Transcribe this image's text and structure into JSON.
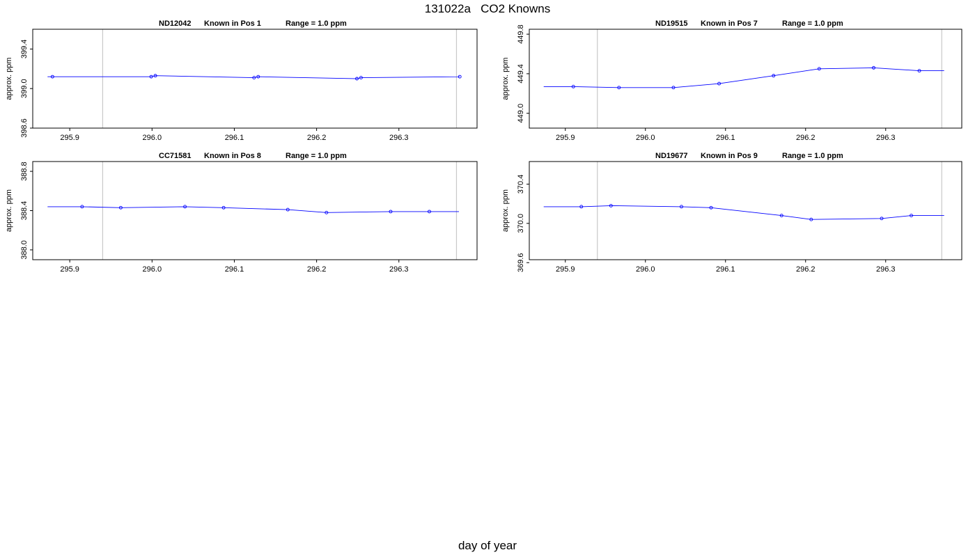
{
  "page": {
    "title": "131022a   CO2 Knowns",
    "xlabel": "day of year"
  },
  "colors": {
    "series": "#0000ff",
    "frame": "#000000",
    "vline": "#c8c8c8"
  },
  "chart_data": [
    {
      "type": "line",
      "id": "ND12042",
      "title_parts": [
        "ND12042",
        "Known in Pos 1",
        "Range = 1.0 ppm"
      ],
      "ylabel": "approx. ppm",
      "xlim": [
        295.855,
        296.395
      ],
      "ylim": [
        398.6,
        399.6
      ],
      "xticks": [
        295.9,
        296.0,
        296.1,
        296.2,
        296.3
      ],
      "xtick_labels": [
        "295.9",
        "296.0",
        "296.1",
        "296.2",
        "296.3"
      ],
      "yticks": [
        398.6,
        399.0,
        399.4
      ],
      "ytick_labels": [
        "398.6",
        "399.0",
        "399.4"
      ],
      "vlines": [
        295.94,
        296.37
      ],
      "line_start": [
        295.873,
        399.12
      ],
      "line_end": [
        296.373,
        399.12
      ],
      "x": [
        295.879,
        295.999,
        296.004,
        296.124,
        296.129,
        296.249,
        296.254,
        296.374
      ],
      "y": [
        399.12,
        399.12,
        399.13,
        399.11,
        399.12,
        399.1,
        399.11,
        399.12
      ]
    },
    {
      "type": "line",
      "id": "ND19515",
      "title_parts": [
        "ND19515",
        "Known in Pos 7",
        "Range = 1.0 ppm"
      ],
      "ylabel": "approx. ppm",
      "xlim": [
        295.855,
        296.395
      ],
      "ylim": [
        448.85,
        449.85
      ],
      "xticks": [
        295.9,
        296.0,
        296.1,
        296.2,
        296.3
      ],
      "xtick_labels": [
        "295.9",
        "296.0",
        "296.1",
        "296.2",
        "296.3"
      ],
      "yticks": [
        449.0,
        449.4,
        449.8
      ],
      "ytick_labels": [
        "449.0",
        "449.4",
        "449.8"
      ],
      "vlines": [
        295.94,
        296.37
      ],
      "line_start": [
        295.873,
        449.27
      ],
      "line_end": [
        296.373,
        449.43
      ],
      "x": [
        295.91,
        295.967,
        296.035,
        296.092,
        296.16,
        296.217,
        296.285,
        296.342
      ],
      "y": [
        449.27,
        449.26,
        449.26,
        449.3,
        449.38,
        449.45,
        449.46,
        449.43
      ]
    },
    {
      "type": "line",
      "id": "CC71581",
      "title_parts": [
        "CC71581",
        "Known in Pos 8",
        "Range = 1.0 ppm"
      ],
      "ylabel": "approx. ppm",
      "xlim": [
        295.855,
        296.395
      ],
      "ylim": [
        387.9,
        388.9
      ],
      "xticks": [
        295.9,
        296.0,
        296.1,
        296.2,
        296.3
      ],
      "xtick_labels": [
        "295.9",
        "296.0",
        "296.1",
        "296.2",
        "296.3"
      ],
      "yticks": [
        388.0,
        388.4,
        388.8
      ],
      "ytick_labels": [
        "388.0",
        "388.4",
        "388.8"
      ],
      "vlines": [
        295.94,
        296.37
      ],
      "line_start": [
        295.873,
        388.44
      ],
      "line_end": [
        296.373,
        388.39
      ],
      "x": [
        295.915,
        295.962,
        296.04,
        296.087,
        296.165,
        296.212,
        296.29,
        296.337
      ],
      "y": [
        388.44,
        388.43,
        388.44,
        388.43,
        388.41,
        388.38,
        388.39,
        388.39
      ]
    },
    {
      "type": "line",
      "id": "ND19677",
      "title_parts": [
        "ND19677",
        "Known in Pos 9",
        "Range = 1.0 ppm"
      ],
      "ylabel": "approx. ppm",
      "xlim": [
        295.855,
        296.395
      ],
      "ylim": [
        369.63,
        370.63
      ],
      "xticks": [
        295.9,
        296.0,
        296.1,
        296.2,
        296.3
      ],
      "xtick_labels": [
        "295.9",
        "296.0",
        "296.1",
        "296.2",
        "296.3"
      ],
      "yticks": [
        369.6,
        370.0,
        370.4
      ],
      "ytick_labels": [
        "369.6",
        "370.0",
        "370.4"
      ],
      "vlines": [
        295.94,
        296.37
      ],
      "line_start": [
        295.873,
        370.17
      ],
      "line_end": [
        296.373,
        370.08
      ],
      "x": [
        295.92,
        295.957,
        296.045,
        296.082,
        296.17,
        296.207,
        296.295,
        296.332
      ],
      "y": [
        370.17,
        370.18,
        370.17,
        370.16,
        370.08,
        370.04,
        370.05,
        370.08
      ]
    }
  ]
}
